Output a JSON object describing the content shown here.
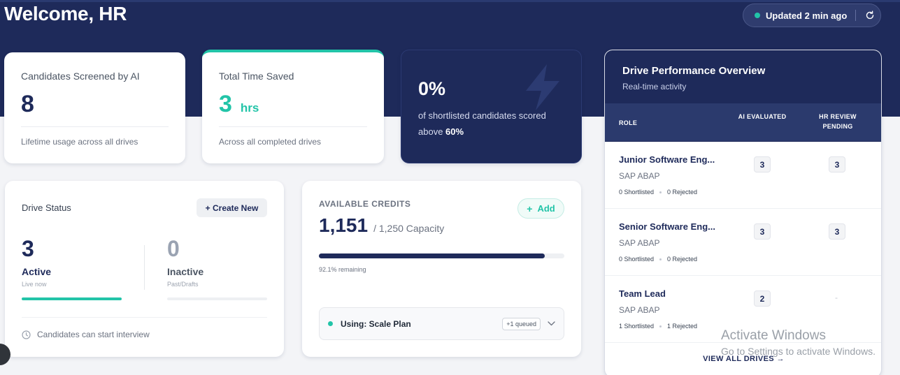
{
  "header": {
    "welcome": "Welcome, HR",
    "updated": "Updated 2 min ago"
  },
  "stats": {
    "screened": {
      "label": "Candidates Screened by AI",
      "value": "8",
      "foot": "Lifetime usage across all drives"
    },
    "time_saved": {
      "label": "Total Time Saved",
      "value": "3",
      "unit": "hrs",
      "foot": "Across all completed drives"
    },
    "shortlisted": {
      "value": "0%",
      "text": "of shortlisted candidates scored above",
      "threshold": "60%"
    }
  },
  "drive_status": {
    "title": "Drive Status",
    "create_label": "+ Create New",
    "active": {
      "value": "3",
      "label": "Active",
      "sub": "Live now"
    },
    "inactive": {
      "value": "0",
      "label": "Inactive",
      "sub": "Past/Drafts"
    },
    "footer": "Candidates can start interview"
  },
  "credits": {
    "label": "AVAILABLE CREDITS",
    "add_label": "Add",
    "value": "1,151",
    "capacity": "/ 1,250 Capacity",
    "remaining_fraction": 0.921,
    "remaining_text": "92.1% remaining",
    "plan": "Using: Scale Plan",
    "queued": "+1 queued"
  },
  "performance": {
    "title": "Drive Performance Overview",
    "subtitle": "Real-time activity",
    "columns": {
      "role": "ROLE",
      "ai": "AI EVALUATED",
      "hr": "HR REVIEW PENDING"
    },
    "rows": [
      {
        "role": "Junior Software Eng...",
        "sub": "SAP ABAP",
        "shortlisted": "0 Shortlisted",
        "rejected": "0 Rejected",
        "ai": "3",
        "hr": "3"
      },
      {
        "role": "Senior Software Eng...",
        "sub": "SAP ABAP",
        "shortlisted": "0 Shortlisted",
        "rejected": "0 Rejected",
        "ai": "3",
        "hr": "3"
      },
      {
        "role": "Team Lead",
        "sub": "SAP ABAP",
        "shortlisted": "1 Shortlisted",
        "rejected": "1 Rejected",
        "ai": "2",
        "hr": "-"
      }
    ],
    "view_all": "VIEW ALL DRIVES →"
  },
  "overlay": {
    "title": "Activate Windows",
    "sub": "Go to Settings to activate Windows."
  },
  "colors": {
    "navy": "#1e2a5a",
    "teal": "#22c4a8"
  },
  "icons": [
    "refresh-icon",
    "bolt-icon",
    "plus-icon",
    "clock-icon",
    "chevron-down-icon"
  ]
}
